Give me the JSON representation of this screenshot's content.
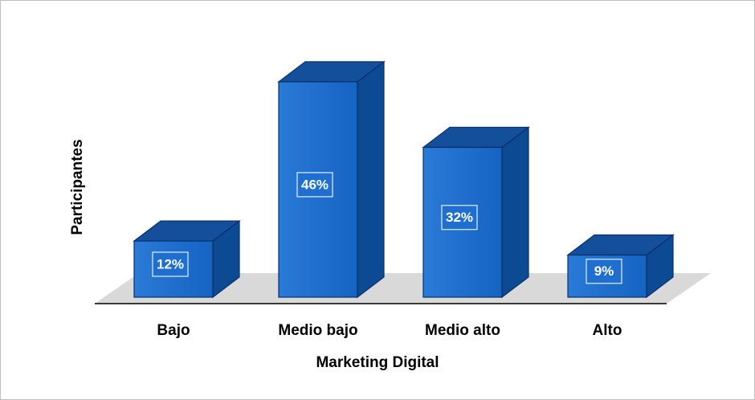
{
  "chart_data": {
    "type": "bar3d",
    "categories": [
      "Bajo",
      "Medio bajo",
      "Medio alto",
      "Alto"
    ],
    "values": [
      12,
      46,
      32,
      9
    ],
    "value_labels": [
      "12%",
      "46%",
      "32%",
      "9%"
    ],
    "color": "#1f6fd1",
    "x_label": "Marketing Digital",
    "y_label": "Participantes"
  }
}
